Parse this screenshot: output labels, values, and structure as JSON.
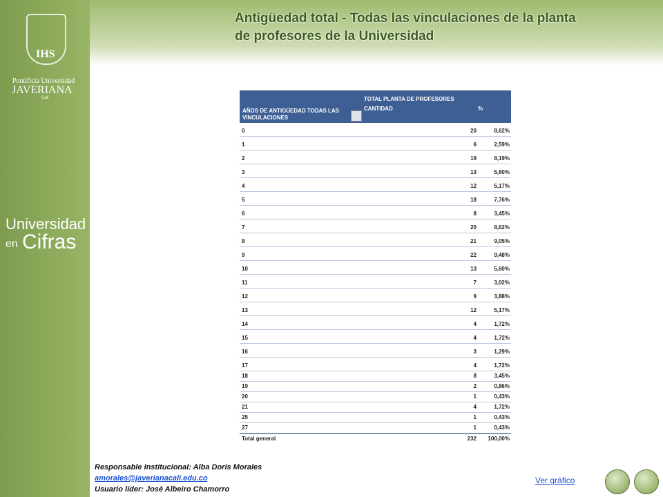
{
  "header": {
    "title_line1": "Antigüedad total - Todas las vinculaciones de la planta",
    "title_line2": "de  profesores de la Universidad"
  },
  "sidebar": {
    "logo_line1": "Pontificia Universidad",
    "logo_line2": "JAVERIANA",
    "logo_line3": "Cali",
    "brand_line1": "Universidad",
    "brand_line2a": "en",
    "brand_line2b": "Cifras"
  },
  "table": {
    "headers": [
      "AÑOS DE ANTIGÜEDAD TODAS LAS VINCULACIONES",
      "TOTAL PLANTA DE PROFESORES",
      "CANTIDAD",
      "%"
    ],
    "rows": [
      [
        "0",
        "20",
        "8,62%"
      ],
      [
        "1",
        "6",
        "2,59%"
      ],
      [
        "2",
        "19",
        "8,19%"
      ],
      [
        "3",
        "13",
        "5,60%"
      ],
      [
        "4",
        "12",
        "5,17%"
      ],
      [
        "5",
        "18",
        "7,76%"
      ],
      [
        "6",
        "8",
        "3,45%"
      ],
      [
        "7",
        "20",
        "8,62%"
      ],
      [
        "8",
        "21",
        "9,05%"
      ],
      [
        "9",
        "22",
        "9,48%"
      ],
      [
        "10",
        "13",
        "5,60%"
      ],
      [
        "11",
        "7",
        "3,02%"
      ],
      [
        "12",
        "9",
        "3,88%"
      ],
      [
        "13",
        "12",
        "5,17%"
      ],
      [
        "14",
        "4",
        "1,72%"
      ],
      [
        "15",
        "4",
        "1,72%"
      ],
      [
        "16",
        "3",
        "1,29%"
      ],
      [
        "17",
        "4",
        "1,72%"
      ],
      [
        "18",
        "8",
        "3,45%"
      ],
      [
        "19",
        "2",
        "0,86%"
      ],
      [
        "20",
        "1",
        "0,43%"
      ],
      [
        "21",
        "4",
        "1,72%"
      ],
      [
        "25",
        "1",
        "0,43%"
      ],
      [
        "27",
        "1",
        "0,43%"
      ]
    ],
    "total": [
      "Total general",
      "232",
      "100,00%"
    ]
  },
  "footer": {
    "responsible": "Responsable Institucional: Alba Doris Morales",
    "email": "amorales@javerianacali.edu.co",
    "leader": "Usuario líder: José Albeiro Chamorro",
    "link": "Ver gráfico"
  }
}
